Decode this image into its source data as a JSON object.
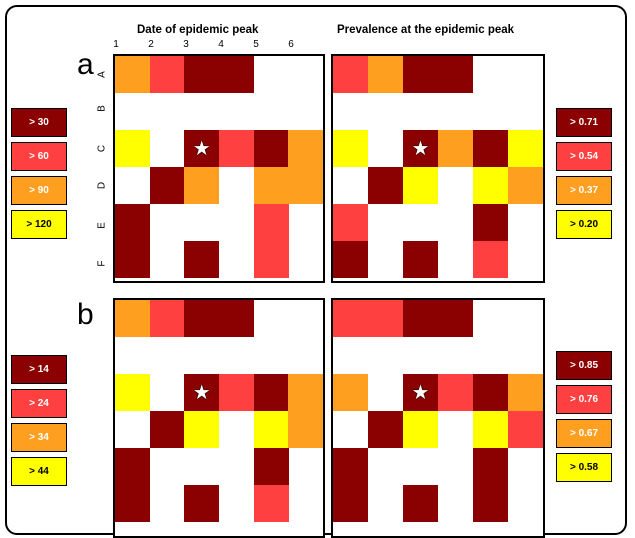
{
  "colors": {
    "dark": "#8b0000",
    "red": "#fe4040",
    "orange": "#fe9f20",
    "yellow": "#ffff00",
    "white": "#ffffff"
  },
  "column_titles": [
    "Date of epidemic peak",
    "Prevalence at the epidemic peak"
  ],
  "panels": [
    {
      "letter": "a",
      "col_ticks": [
        "1",
        "2",
        "3",
        "4",
        "5",
        "6"
      ],
      "row_ticks": [
        "A",
        "B",
        "C",
        "D",
        "E",
        "F"
      ],
      "legend_left": [
        "> 30",
        "> 60",
        "> 90",
        "> 120"
      ],
      "legend_right": [
        "> 0.71",
        "> 0.54",
        "> 0.37",
        "> 0.20"
      ]
    },
    {
      "letter": "b",
      "legend_left": [
        "> 14",
        "> 24",
        "> 34",
        "> 44"
      ],
      "legend_right": [
        "> 0.85",
        "> 0.76",
        "> 0.67",
        "> 0.58"
      ]
    }
  ],
  "chart_data": [
    {
      "type": "heatmap",
      "panel": "a",
      "title": "Date of epidemic peak",
      "x_labels": [
        "1",
        "2",
        "3",
        "4",
        "5",
        "6"
      ],
      "y_labels": [
        "A",
        "B",
        "C",
        "D",
        "E",
        "F"
      ],
      "categories": [
        "> 30",
        "> 60",
        "> 90",
        "> 120"
      ],
      "matrix": [
        [
          3,
          2,
          1,
          1,
          0,
          0
        ],
        [
          0,
          0,
          0,
          0,
          0,
          0
        ],
        [
          4,
          0,
          1,
          2,
          1,
          3
        ],
        [
          0,
          1,
          3,
          0,
          3,
          3
        ],
        [
          1,
          0,
          0,
          0,
          2,
          0
        ],
        [
          1,
          0,
          1,
          0,
          2,
          0
        ]
      ],
      "marker": {
        "row": "C",
        "col": "3",
        "symbol": "★"
      }
    },
    {
      "type": "heatmap",
      "panel": "a",
      "title": "Prevalence at the epidemic peak",
      "x_labels": [
        "1",
        "2",
        "3",
        "4",
        "5",
        "6"
      ],
      "y_labels": [
        "A",
        "B",
        "C",
        "D",
        "E",
        "F"
      ],
      "categories": [
        "> 0.71",
        "> 0.54",
        "> 0.37",
        "> 0.20"
      ],
      "matrix": [
        [
          2,
          3,
          1,
          1,
          0,
          0
        ],
        [
          0,
          0,
          0,
          0,
          0,
          0
        ],
        [
          4,
          0,
          1,
          3,
          1,
          4
        ],
        [
          0,
          1,
          4,
          0,
          4,
          3
        ],
        [
          2,
          0,
          0,
          0,
          1,
          0
        ],
        [
          1,
          0,
          1,
          0,
          2,
          0
        ]
      ],
      "marker": {
        "row": "C",
        "col": "3",
        "symbol": "★"
      }
    },
    {
      "type": "heatmap",
      "panel": "b",
      "title": "Date of epidemic peak",
      "categories": [
        "> 14",
        "> 24",
        "> 34",
        "> 44"
      ],
      "matrix": [
        [
          3,
          2,
          1,
          1,
          0,
          0
        ],
        [
          0,
          0,
          0,
          0,
          0,
          0
        ],
        [
          4,
          0,
          1,
          2,
          1,
          3
        ],
        [
          0,
          1,
          4,
          0,
          4,
          3
        ],
        [
          1,
          0,
          0,
          0,
          1,
          0
        ],
        [
          1,
          0,
          1,
          0,
          2,
          0
        ]
      ],
      "marker": {
        "row": "C",
        "col": "3",
        "symbol": "★"
      }
    },
    {
      "type": "heatmap",
      "panel": "b",
      "title": "Prevalence at the epidemic peak",
      "categories": [
        "> 0.85",
        "> 0.76",
        "> 0.67",
        "> 0.58"
      ],
      "matrix": [
        [
          2,
          2,
          1,
          1,
          0,
          0
        ],
        [
          0,
          0,
          0,
          0,
          0,
          0
        ],
        [
          3,
          0,
          1,
          2,
          1,
          3
        ],
        [
          0,
          1,
          4,
          0,
          4,
          2
        ],
        [
          1,
          0,
          0,
          0,
          1,
          0
        ],
        [
          1,
          0,
          1,
          0,
          1,
          0
        ]
      ],
      "marker": {
        "row": "C",
        "col": "3",
        "symbol": "★"
      }
    }
  ]
}
